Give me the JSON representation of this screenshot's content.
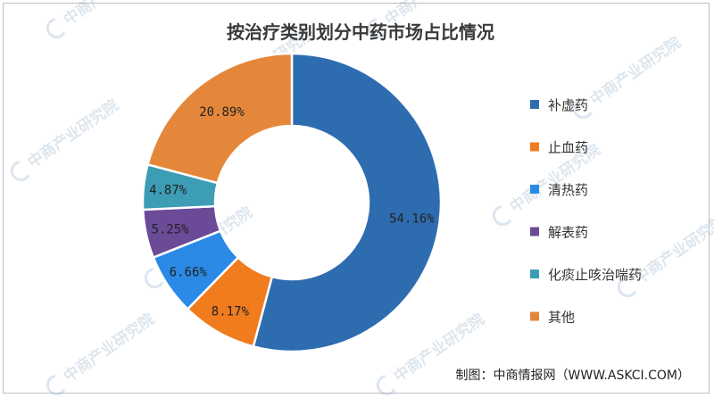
{
  "chart_data": {
    "type": "pie",
    "style": "donut",
    "title": "按治疗类别划分中药市场占比情况",
    "categories": [
      "补虚药",
      "止血药",
      "清热药",
      "解表药",
      "化痰止咳治喘药",
      "其他"
    ],
    "values": [
      54.16,
      8.17,
      6.66,
      5.25,
      4.87,
      20.89
    ],
    "labels": [
      "54.16%",
      "8.17%",
      "6.66%",
      "5.25%",
      "4.87%",
      "20.89%"
    ],
    "colors": [
      "#2e6cb0",
      "#f07c1e",
      "#2a8ae6",
      "#6b4a98",
      "#3d9db5",
      "#e5873a"
    ],
    "legend_placement": "right",
    "source": "制图：中商情报网（WWW.ASKCI.COM）"
  },
  "watermark": {
    "text": "中商产业研究院",
    "icon": "c-logo-icon"
  }
}
